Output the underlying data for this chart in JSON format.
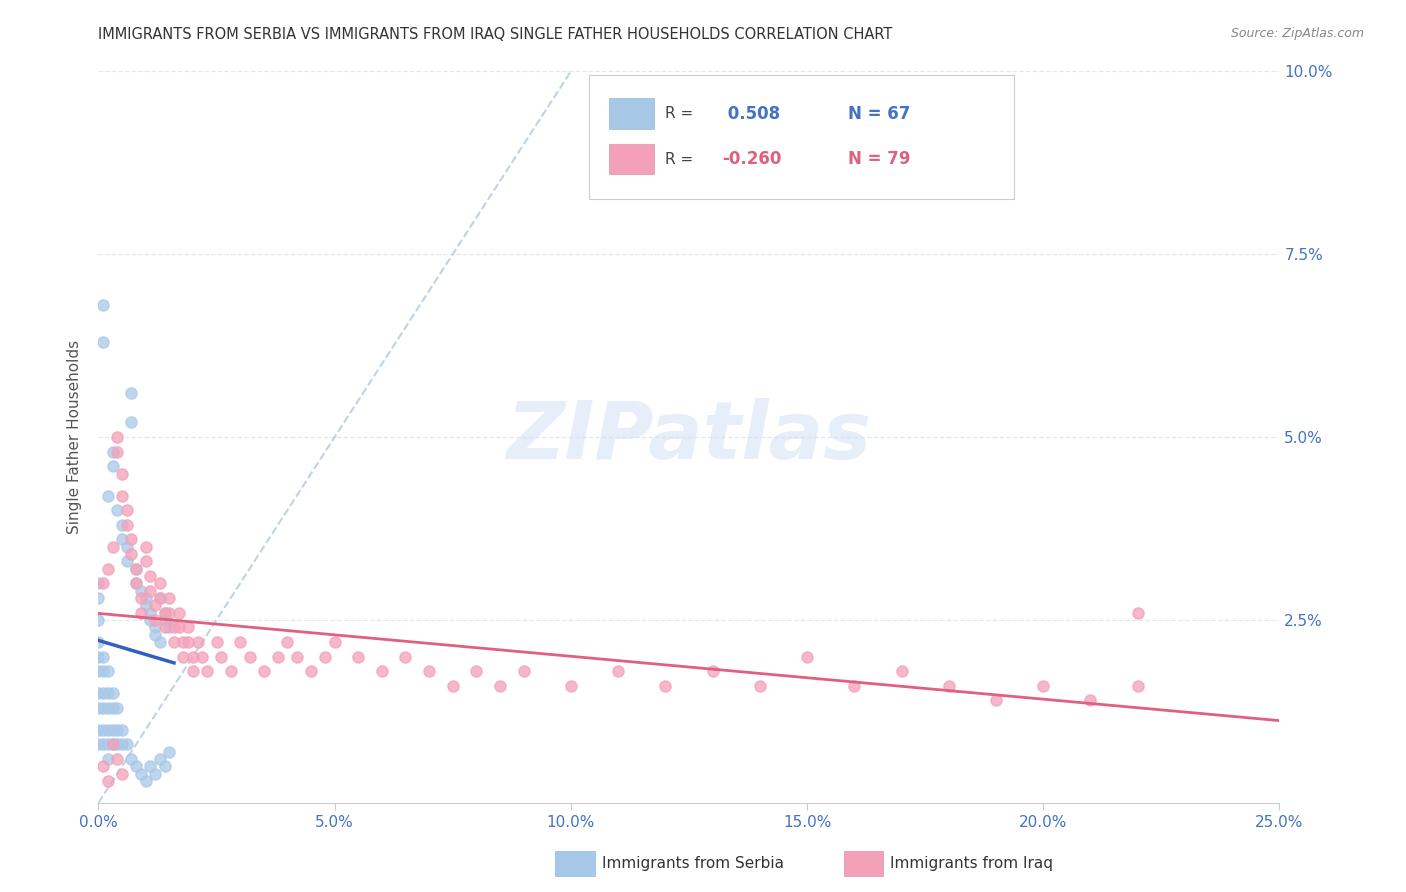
{
  "title": "IMMIGRANTS FROM SERBIA VS IMMIGRANTS FROM IRAQ SINGLE FATHER HOUSEHOLDS CORRELATION CHART",
  "source": "Source: ZipAtlas.com",
  "ylabel": "Single Father Households",
  "xlim": [
    0.0,
    0.25
  ],
  "ylim": [
    0.0,
    0.1
  ],
  "xtick_vals": [
    0.0,
    0.05,
    0.1,
    0.15,
    0.2,
    0.25
  ],
  "xtick_labels": [
    "0.0%",
    "5.0%",
    "10.0%",
    "15.0%",
    "20.0%",
    "25.0%"
  ],
  "ytick_vals": [
    0.025,
    0.05,
    0.075,
    0.1
  ],
  "ytick_labels": [
    "2.5%",
    "5.0%",
    "7.5%",
    "10.0%"
  ],
  "serbia_color": "#a8c8e8",
  "iraq_color": "#f4a0b8",
  "serbia_line_color": "#3060c0",
  "iraq_line_color": "#e06080",
  "dashed_line_color": "#b0c8e0",
  "R_serbia": 0.508,
  "N_serbia": 67,
  "R_iraq": -0.26,
  "N_iraq": 79,
  "background_color": "#ffffff",
  "grid_color": "#dde8f0",
  "serbia_scatter": [
    [
      0.001,
      0.068
    ],
    [
      0.001,
      0.063
    ],
    [
      0.007,
      0.056
    ],
    [
      0.007,
      0.052
    ],
    [
      0.003,
      0.048
    ],
    [
      0.003,
      0.046
    ],
    [
      0.002,
      0.042
    ],
    [
      0.004,
      0.04
    ],
    [
      0.005,
      0.038
    ],
    [
      0.005,
      0.036
    ],
    [
      0.006,
      0.035
    ],
    [
      0.006,
      0.033
    ],
    [
      0.008,
      0.032
    ],
    [
      0.008,
      0.03
    ],
    [
      0.009,
      0.029
    ],
    [
      0.01,
      0.028
    ],
    [
      0.01,
      0.027
    ],
    [
      0.011,
      0.026
    ],
    [
      0.011,
      0.025
    ],
    [
      0.012,
      0.024
    ],
    [
      0.012,
      0.023
    ],
    [
      0.013,
      0.022
    ],
    [
      0.013,
      0.028
    ],
    [
      0.014,
      0.026
    ],
    [
      0.014,
      0.025
    ],
    [
      0.015,
      0.024
    ],
    [
      0.0,
      0.03
    ],
    [
      0.0,
      0.028
    ],
    [
      0.0,
      0.025
    ],
    [
      0.0,
      0.022
    ],
    [
      0.0,
      0.02
    ],
    [
      0.0,
      0.018
    ],
    [
      0.0,
      0.015
    ],
    [
      0.0,
      0.013
    ],
    [
      0.0,
      0.01
    ],
    [
      0.0,
      0.008
    ],
    [
      0.001,
      0.02
    ],
    [
      0.001,
      0.018
    ],
    [
      0.001,
      0.015
    ],
    [
      0.001,
      0.013
    ],
    [
      0.001,
      0.01
    ],
    [
      0.001,
      0.008
    ],
    [
      0.002,
      0.018
    ],
    [
      0.002,
      0.015
    ],
    [
      0.002,
      0.013
    ],
    [
      0.002,
      0.01
    ],
    [
      0.002,
      0.008
    ],
    [
      0.002,
      0.006
    ],
    [
      0.003,
      0.015
    ],
    [
      0.003,
      0.013
    ],
    [
      0.003,
      0.01
    ],
    [
      0.003,
      0.008
    ],
    [
      0.004,
      0.013
    ],
    [
      0.004,
      0.01
    ],
    [
      0.004,
      0.008
    ],
    [
      0.005,
      0.01
    ],
    [
      0.005,
      0.008
    ],
    [
      0.006,
      0.008
    ],
    [
      0.007,
      0.006
    ],
    [
      0.008,
      0.005
    ],
    [
      0.009,
      0.004
    ],
    [
      0.01,
      0.003
    ],
    [
      0.011,
      0.005
    ],
    [
      0.012,
      0.004
    ],
    [
      0.013,
      0.006
    ],
    [
      0.014,
      0.005
    ],
    [
      0.015,
      0.007
    ]
  ],
  "iraq_scatter": [
    [
      0.001,
      0.03
    ],
    [
      0.002,
      0.032
    ],
    [
      0.003,
      0.035
    ],
    [
      0.004,
      0.05
    ],
    [
      0.004,
      0.048
    ],
    [
      0.005,
      0.045
    ],
    [
      0.005,
      0.042
    ],
    [
      0.006,
      0.04
    ],
    [
      0.006,
      0.038
    ],
    [
      0.007,
      0.036
    ],
    [
      0.007,
      0.034
    ],
    [
      0.008,
      0.032
    ],
    [
      0.008,
      0.03
    ],
    [
      0.009,
      0.028
    ],
    [
      0.009,
      0.026
    ],
    [
      0.01,
      0.035
    ],
    [
      0.01,
      0.033
    ],
    [
      0.011,
      0.031
    ],
    [
      0.011,
      0.029
    ],
    [
      0.012,
      0.027
    ],
    [
      0.012,
      0.025
    ],
    [
      0.013,
      0.03
    ],
    [
      0.013,
      0.028
    ],
    [
      0.014,
      0.026
    ],
    [
      0.014,
      0.024
    ],
    [
      0.015,
      0.028
    ],
    [
      0.015,
      0.026
    ],
    [
      0.016,
      0.024
    ],
    [
      0.016,
      0.022
    ],
    [
      0.017,
      0.026
    ],
    [
      0.017,
      0.024
    ],
    [
      0.018,
      0.022
    ],
    [
      0.018,
      0.02
    ],
    [
      0.019,
      0.024
    ],
    [
      0.019,
      0.022
    ],
    [
      0.02,
      0.02
    ],
    [
      0.02,
      0.018
    ],
    [
      0.021,
      0.022
    ],
    [
      0.022,
      0.02
    ],
    [
      0.023,
      0.018
    ],
    [
      0.025,
      0.022
    ],
    [
      0.026,
      0.02
    ],
    [
      0.028,
      0.018
    ],
    [
      0.03,
      0.022
    ],
    [
      0.032,
      0.02
    ],
    [
      0.035,
      0.018
    ],
    [
      0.038,
      0.02
    ],
    [
      0.04,
      0.022
    ],
    [
      0.042,
      0.02
    ],
    [
      0.045,
      0.018
    ],
    [
      0.048,
      0.02
    ],
    [
      0.05,
      0.022
    ],
    [
      0.055,
      0.02
    ],
    [
      0.06,
      0.018
    ],
    [
      0.065,
      0.02
    ],
    [
      0.07,
      0.018
    ],
    [
      0.075,
      0.016
    ],
    [
      0.08,
      0.018
    ],
    [
      0.085,
      0.016
    ],
    [
      0.09,
      0.018
    ],
    [
      0.1,
      0.016
    ],
    [
      0.11,
      0.018
    ],
    [
      0.12,
      0.016
    ],
    [
      0.13,
      0.018
    ],
    [
      0.14,
      0.016
    ],
    [
      0.15,
      0.02
    ],
    [
      0.16,
      0.016
    ],
    [
      0.17,
      0.018
    ],
    [
      0.18,
      0.016
    ],
    [
      0.19,
      0.014
    ],
    [
      0.2,
      0.016
    ],
    [
      0.21,
      0.014
    ],
    [
      0.22,
      0.016
    ],
    [
      0.22,
      0.026
    ],
    [
      0.001,
      0.005
    ],
    [
      0.002,
      0.003
    ],
    [
      0.003,
      0.008
    ],
    [
      0.004,
      0.006
    ],
    [
      0.005,
      0.004
    ]
  ]
}
